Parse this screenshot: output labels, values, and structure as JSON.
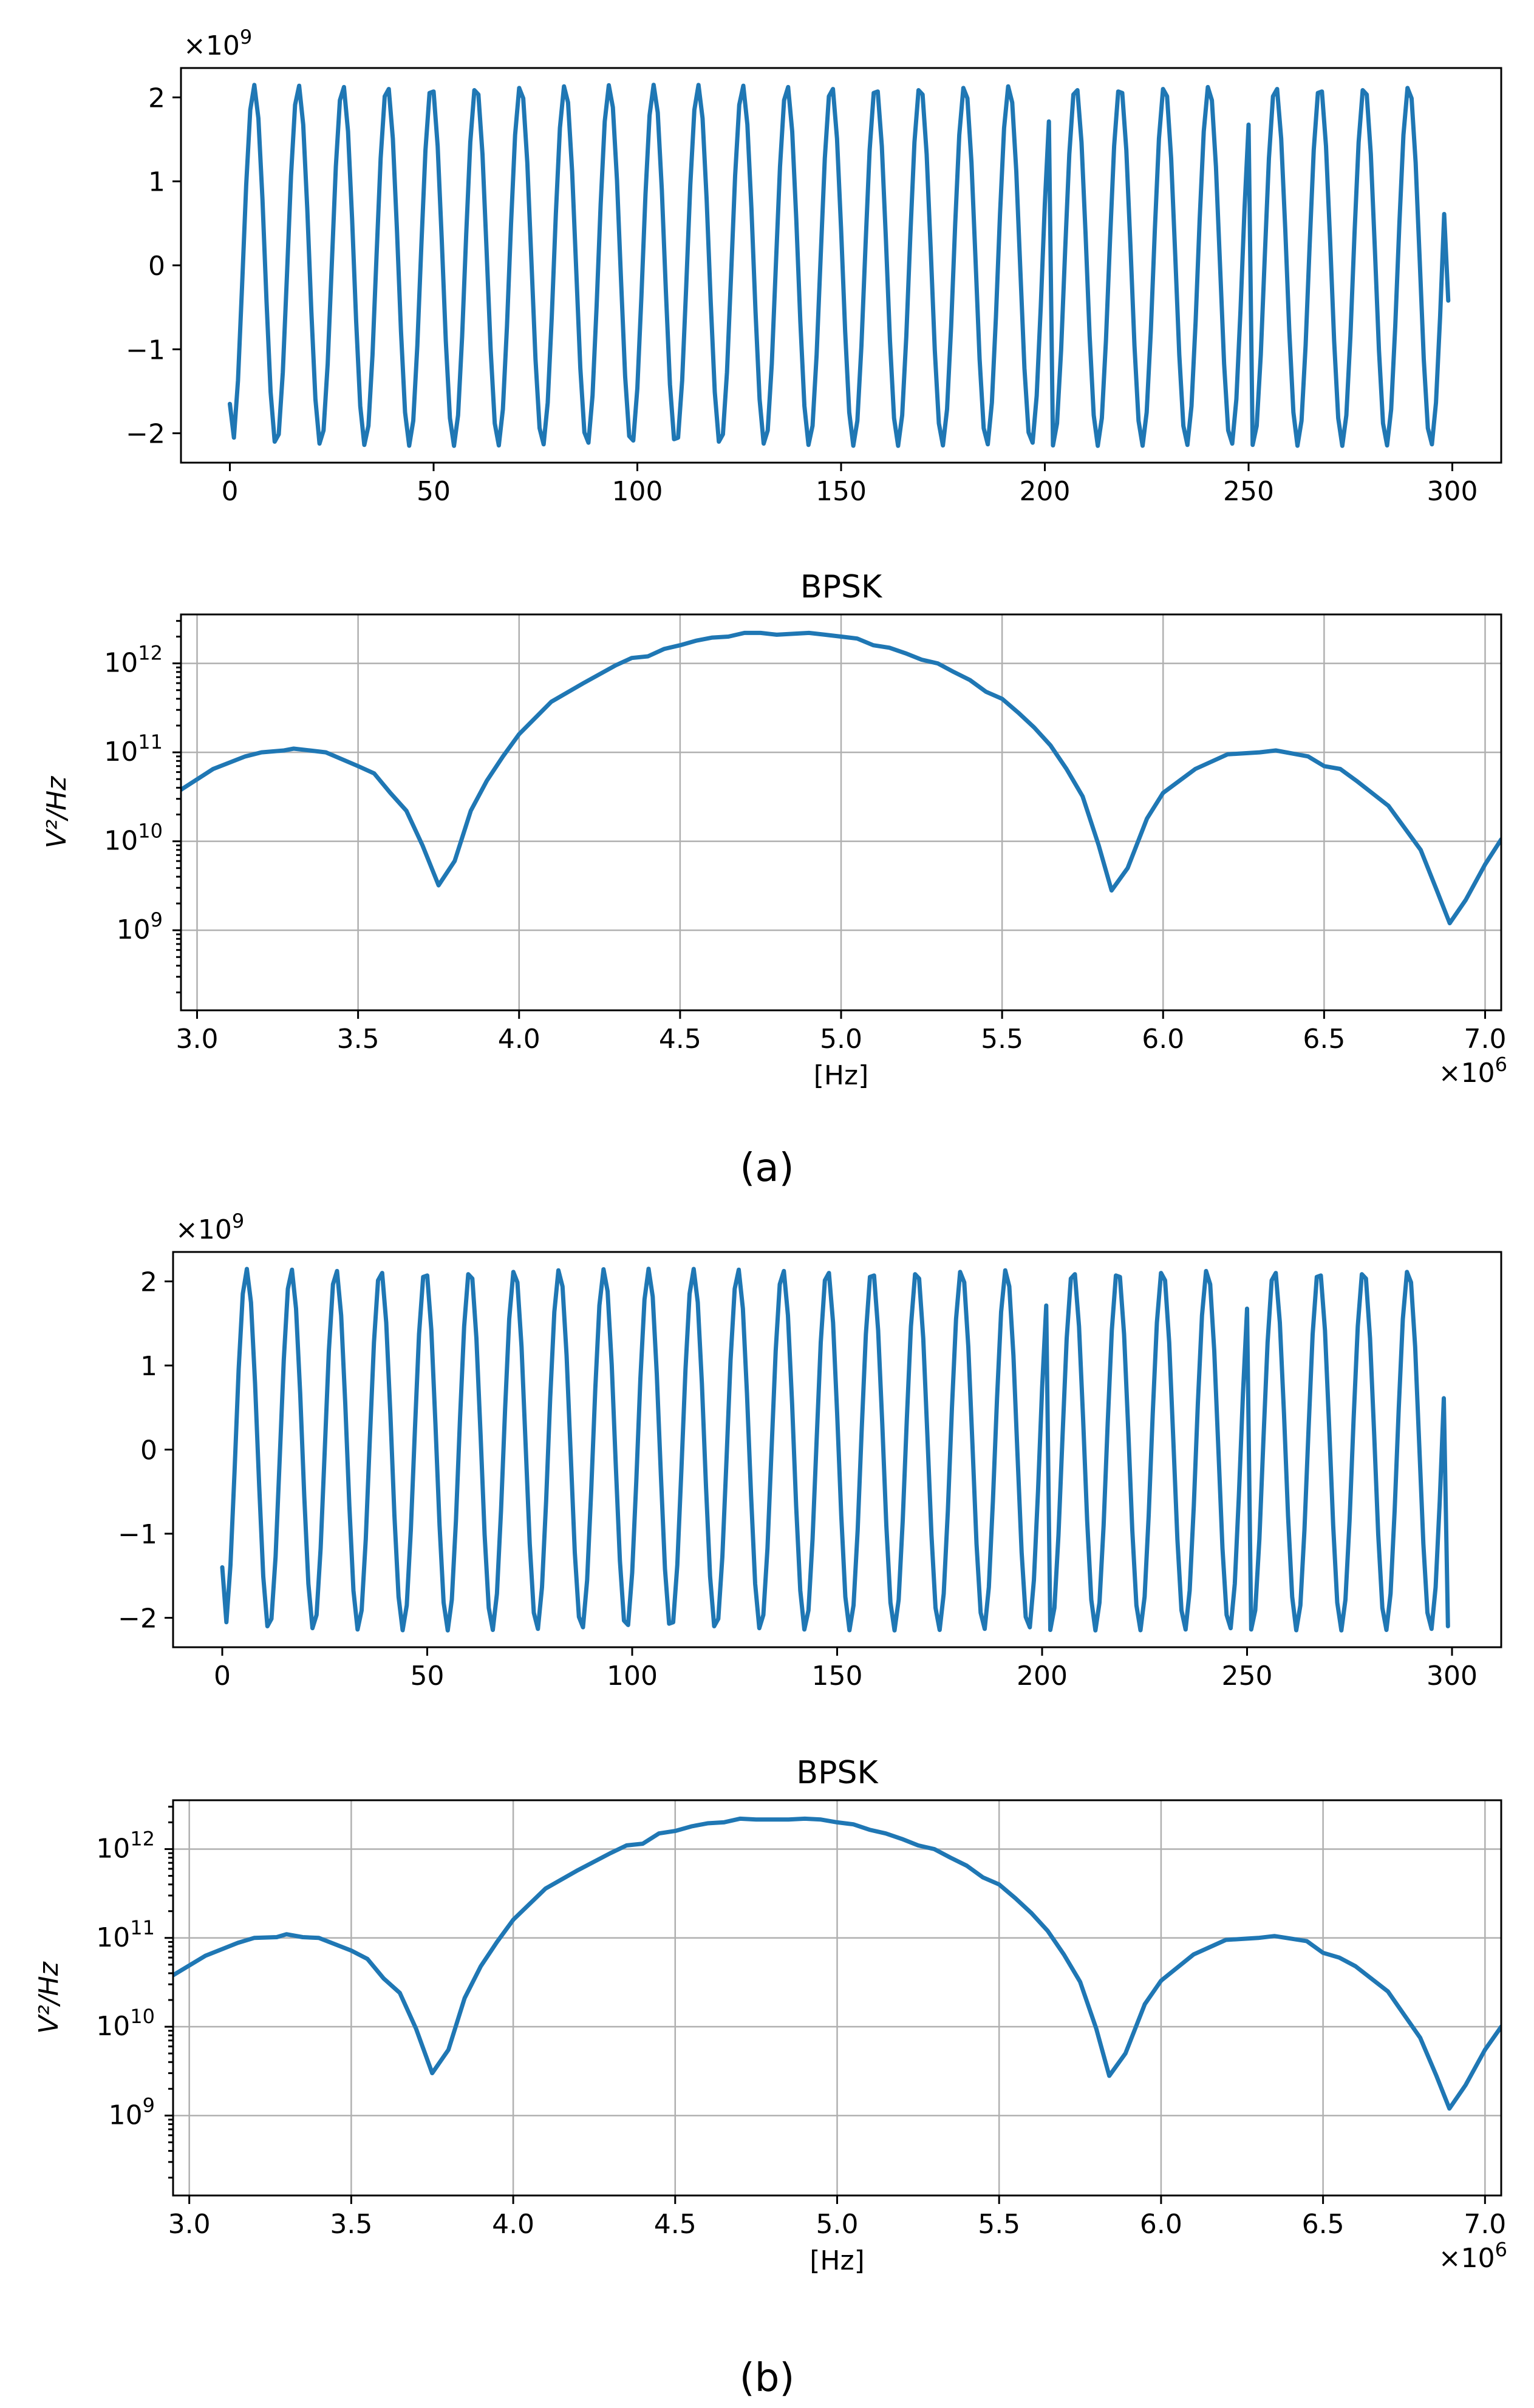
{
  "figure": {
    "panel_labels": [
      "(a)",
      "(b)"
    ]
  },
  "chart_data": [
    {
      "id": "a-time",
      "type": "line",
      "title": "",
      "xlabel": "",
      "ylabel": "",
      "y_multiplier_label": "×10^9",
      "xlim": [
        -12,
        312
      ],
      "ylim": [
        -2.35,
        2.35
      ],
      "xticks": [
        0,
        50,
        100,
        150,
        200,
        250,
        300
      ],
      "yticks": [
        -2,
        -1,
        0,
        1,
        2
      ],
      "ytick_labels": [
        "−2",
        "−1",
        "0",
        "1",
        "2"
      ],
      "grid": false,
      "signal": {
        "samples": 300,
        "amplitude": 2.15,
        "period": 10.9,
        "start_value": -1.65,
        "end_value": -0.42,
        "phase_flips": [
          202,
          251
        ]
      }
    },
    {
      "id": "a-psd",
      "type": "line",
      "title": "BPSK",
      "xlabel": "[Hz]",
      "ylabel": "V²/Hz",
      "x_multiplier_label": "×10^6",
      "y_scale": "log",
      "xlim": [
        2.95,
        7.05
      ],
      "ylim_log10": [
        8.1,
        12.55
      ],
      "xticks": [
        3.0,
        3.5,
        4.0,
        4.5,
        5.0,
        5.5,
        6.0,
        6.5,
        7.0
      ],
      "xtick_labels": [
        "3.0",
        "3.5",
        "4.0",
        "4.5",
        "5.0",
        "5.5",
        "6.0",
        "6.5",
        "7.0"
      ],
      "yticks_log10": [
        9,
        10,
        11,
        12
      ],
      "grid": true,
      "x": [
        2.95,
        3.05,
        3.15,
        3.2,
        3.27,
        3.3,
        3.35,
        3.4,
        3.5,
        3.55,
        3.6,
        3.65,
        3.7,
        3.75,
        3.8,
        3.85,
        3.9,
        3.95,
        4.0,
        4.1,
        4.2,
        4.3,
        4.35,
        4.4,
        4.45,
        4.5,
        4.55,
        4.6,
        4.65,
        4.7,
        4.75,
        4.8,
        4.85,
        4.9,
        4.95,
        5.0,
        5.05,
        5.1,
        5.15,
        5.2,
        5.25,
        5.3,
        5.35,
        5.4,
        5.45,
        5.5,
        5.55,
        5.6,
        5.65,
        5.7,
        5.75,
        5.8,
        5.84,
        5.89,
        5.95,
        6.0,
        6.1,
        6.2,
        6.3,
        6.35,
        6.45,
        6.5,
        6.55,
        6.6,
        6.7,
        6.8,
        6.85,
        6.89,
        6.94,
        7.0,
        7.05
      ],
      "y": [
        38000000000.0,
        65000000000.0,
        90000000000.0,
        100000000000.0,
        105000000000.0,
        110000000000.0,
        105000000000.0,
        100000000000.0,
        70000000000.0,
        58000000000.0,
        35000000000.0,
        22000000000.0,
        9000000000.0,
        3200000000.0,
        6000000000.0,
        22000000000.0,
        48000000000.0,
        90000000000.0,
        160000000000.0,
        370000000000.0,
        600000000000.0,
        950000000000.0,
        1150000000000.0,
        1200000000000.0,
        1450000000000.0,
        1600000000000.0,
        1800000000000.0,
        1950000000000.0,
        2000000000000.0,
        2200000000000.0,
        2200000000000.0,
        2100000000000.0,
        2150000000000.0,
        2200000000000.0,
        2100000000000.0,
        2000000000000.0,
        1900000000000.0,
        1600000000000.0,
        1500000000000.0,
        1300000000000.0,
        1100000000000.0,
        1000000000000.0,
        800000000000.0,
        650000000000.0,
        480000000000.0,
        400000000000.0,
        280000000000.0,
        190000000000.0,
        120000000000.0,
        65000000000.0,
        32000000000.0,
        9000000000.0,
        2800000000.0,
        5000000000.0,
        18000000000.0,
        35000000000.0,
        65000000000.0,
        95000000000.0,
        100000000000.0,
        105000000000.0,
        90000000000.0,
        70000000000.0,
        65000000000.0,
        48000000000.0,
        25000000000.0,
        8000000000.0,
        2800000000.0,
        1200000000.0,
        2200000000.0,
        5500000000.0,
        10500000000.0
      ]
    },
    {
      "id": "b-time",
      "type": "line",
      "title": "",
      "xlabel": "",
      "ylabel": "",
      "y_multiplier_label": "×10^9",
      "xlim": [
        -12,
        312
      ],
      "ylim": [
        -2.35,
        2.35
      ],
      "xticks": [
        0,
        50,
        100,
        150,
        200,
        250,
        300
      ],
      "yticks": [
        -2,
        -1,
        0,
        1,
        2
      ],
      "ytick_labels": [
        "−2",
        "−1",
        "0",
        "1",
        "2"
      ],
      "grid": false,
      "signal": {
        "samples": 300,
        "amplitude": 2.15,
        "period": 10.9,
        "start_value": -1.4,
        "end_value": -2.1,
        "phase_flips": [
          202,
          251
        ]
      }
    },
    {
      "id": "b-psd",
      "type": "line",
      "title": "BPSK",
      "xlabel": "[Hz]",
      "ylabel": "V²/Hz",
      "x_multiplier_label": "×10^6",
      "y_scale": "log",
      "xlim": [
        2.95,
        7.05
      ],
      "ylim_log10": [
        8.1,
        12.55
      ],
      "xticks": [
        3.0,
        3.5,
        4.0,
        4.5,
        5.0,
        5.5,
        6.0,
        6.5,
        7.0
      ],
      "xtick_labels": [
        "3.0",
        "3.5",
        "4.0",
        "4.5",
        "5.0",
        "5.5",
        "6.0",
        "6.5",
        "7.0"
      ],
      "yticks_log10": [
        9,
        10,
        11,
        12
      ],
      "grid": true,
      "x": [
        2.95,
        3.05,
        3.15,
        3.2,
        3.27,
        3.3,
        3.35,
        3.4,
        3.5,
        3.55,
        3.6,
        3.65,
        3.7,
        3.75,
        3.8,
        3.85,
        3.9,
        3.95,
        4.0,
        4.1,
        4.2,
        4.3,
        4.35,
        4.4,
        4.45,
        4.5,
        4.55,
        4.6,
        4.65,
        4.7,
        4.75,
        4.8,
        4.85,
        4.9,
        4.95,
        5.0,
        5.05,
        5.1,
        5.15,
        5.2,
        5.25,
        5.3,
        5.35,
        5.4,
        5.45,
        5.5,
        5.55,
        5.6,
        5.65,
        5.7,
        5.75,
        5.8,
        5.84,
        5.89,
        5.95,
        6.0,
        6.1,
        6.2,
        6.3,
        6.35,
        6.45,
        6.5,
        6.55,
        6.6,
        6.7,
        6.8,
        6.85,
        6.89,
        6.94,
        7.0,
        7.05
      ],
      "y": [
        38000000000.0,
        63000000000.0,
        88000000000.0,
        100000000000.0,
        102000000000.0,
        110000000000.0,
        102000000000.0,
        100000000000.0,
        72000000000.0,
        58000000000.0,
        35000000000.0,
        24000000000.0,
        9500000000.0,
        3000000000.0,
        5500000000.0,
        21000000000.0,
        48000000000.0,
        90000000000.0,
        160000000000.0,
        360000000000.0,
        580000000000.0,
        900000000000.0,
        1100000000000.0,
        1150000000000.0,
        1500000000000.0,
        1600000000000.0,
        1800000000000.0,
        1950000000000.0,
        2000000000000.0,
        2200000000000.0,
        2150000000000.0,
        2150000000000.0,
        2150000000000.0,
        2200000000000.0,
        2150000000000.0,
        2000000000000.0,
        1900000000000.0,
        1650000000000.0,
        1500000000000.0,
        1300000000000.0,
        1100000000000.0,
        1000000000000.0,
        800000000000.0,
        650000000000.0,
        480000000000.0,
        400000000000.0,
        280000000000.0,
        190000000000.0,
        120000000000.0,
        65000000000.0,
        32000000000.0,
        9500000000.0,
        2800000000.0,
        5000000000.0,
        18000000000.0,
        33000000000.0,
        65000000000.0,
        95000000000.0,
        100000000000.0,
        105000000000.0,
        92000000000.0,
        68000000000.0,
        60000000000.0,
        48000000000.0,
        25000000000.0,
        7500000000.0,
        2800000000.0,
        1200000000.0,
        2200000000.0,
        5500000000.0,
        10000000000.0
      ]
    }
  ]
}
